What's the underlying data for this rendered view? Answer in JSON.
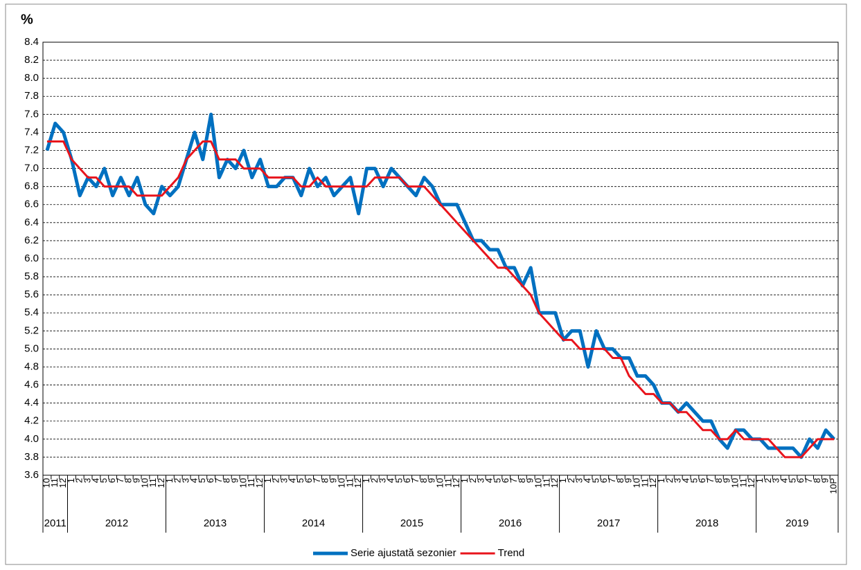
{
  "chart_data": {
    "type": "line",
    "y_unit": "%",
    "years": [
      "2011",
      "2012",
      "2013",
      "2014",
      "2015",
      "2016",
      "2017",
      "2018",
      "2019"
    ],
    "categories": [
      "10",
      "11",
      "12",
      "1",
      "2",
      "3",
      "4",
      "5",
      "6",
      "7",
      "8",
      "9",
      "10",
      "11",
      "12",
      "1",
      "2",
      "3",
      "4",
      "5",
      "6",
      "7",
      "8",
      "9",
      "10",
      "11",
      "12",
      "1",
      "2",
      "3",
      "4",
      "5",
      "6",
      "7",
      "8",
      "9",
      "10",
      "11",
      "12",
      "1",
      "2",
      "3",
      "4",
      "5",
      "6",
      "7",
      "8",
      "9",
      "10",
      "11",
      "12",
      "1",
      "2",
      "3",
      "4",
      "5",
      "6",
      "7",
      "8",
      "9",
      "10",
      "11",
      "12",
      "1",
      "2",
      "3",
      "4",
      "5",
      "6",
      "7",
      "8",
      "9",
      "10",
      "11",
      "12",
      "1",
      "2",
      "3",
      "4",
      "5",
      "6",
      "7",
      "8",
      "9",
      "10",
      "11",
      "12",
      "1",
      "2",
      "3",
      "4",
      "5",
      "6",
      "7",
      "8",
      "9",
      "10P"
    ],
    "series": [
      {
        "name": "Serie ajustată sezonier",
        "color": "#0070c0",
        "values": [
          7.2,
          7.5,
          7.4,
          7.1,
          6.7,
          6.9,
          6.8,
          7.0,
          6.7,
          6.9,
          6.7,
          6.9,
          6.6,
          6.5,
          6.8,
          6.7,
          6.8,
          7.1,
          7.4,
          7.1,
          7.6,
          6.9,
          7.1,
          7.0,
          7.2,
          6.9,
          7.1,
          6.8,
          6.8,
          6.9,
          6.9,
          6.7,
          7.0,
          6.8,
          6.9,
          6.7,
          6.8,
          6.9,
          6.5,
          7.0,
          7.0,
          6.8,
          7.0,
          6.9,
          6.8,
          6.7,
          6.9,
          6.8,
          6.6,
          6.6,
          6.6,
          6.4,
          6.2,
          6.2,
          6.1,
          6.1,
          5.9,
          5.9,
          5.7,
          5.9,
          5.4,
          5.4,
          5.4,
          5.1,
          5.2,
          5.2,
          4.8,
          5.2,
          5.0,
          5.0,
          4.9,
          4.9,
          4.7,
          4.7,
          4.6,
          4.4,
          4.4,
          4.3,
          4.4,
          4.3,
          4.2,
          4.2,
          4.0,
          3.9,
          4.1,
          4.1,
          4.0,
          4.0,
          3.9,
          3.9,
          3.9,
          3.9,
          3.8,
          4.0,
          3.9,
          4.1,
          4.0
        ]
      },
      {
        "name": "Trend",
        "color": "#e8141c",
        "values": [
          7.3,
          7.3,
          7.3,
          7.1,
          7.0,
          6.9,
          6.9,
          6.8,
          6.8,
          6.8,
          6.8,
          6.7,
          6.7,
          6.7,
          6.7,
          6.8,
          6.9,
          7.1,
          7.2,
          7.3,
          7.3,
          7.1,
          7.1,
          7.1,
          7.0,
          7.0,
          7.0,
          6.9,
          6.9,
          6.9,
          6.9,
          6.8,
          6.8,
          6.9,
          6.8,
          6.8,
          6.8,
          6.8,
          6.8,
          6.8,
          6.9,
          6.9,
          6.9,
          6.9,
          6.8,
          6.8,
          6.8,
          6.7,
          6.6,
          6.5,
          6.4,
          6.3,
          6.2,
          6.1,
          6.0,
          5.9,
          5.9,
          5.8,
          5.7,
          5.6,
          5.4,
          5.3,
          5.2,
          5.1,
          5.1,
          5.0,
          5.0,
          5.0,
          5.0,
          4.9,
          4.9,
          4.7,
          4.6,
          4.5,
          4.5,
          4.4,
          4.4,
          4.3,
          4.3,
          4.2,
          4.1,
          4.1,
          4.0,
          4.0,
          4.1,
          4.0,
          4.0,
          4.0,
          4.0,
          3.9,
          3.8,
          3.8,
          3.8,
          3.9,
          4.0,
          4.0,
          4.0
        ]
      }
    ],
    "ylim": [
      3.6,
      8.4
    ],
    "yticks": [
      3.6,
      3.8,
      {
        "value": 4.0,
        "label": "4.0"
      },
      4.2,
      4.4,
      4.6,
      4.8,
      {
        "value": 5.0,
        "label": "5.0"
      },
      5.2,
      5.4,
      5.6,
      5.8,
      {
        "value": 6.0,
        "label": "6.0"
      },
      6.2,
      6.4,
      6.6,
      6.8,
      {
        "value": 7.0,
        "label": "7.0"
      },
      7.2,
      7.4,
      7.6,
      7.8,
      {
        "value": 8.0,
        "label": "8.0"
      },
      8.2,
      8.4
    ],
    "grid": true,
    "legend": "bottom"
  }
}
